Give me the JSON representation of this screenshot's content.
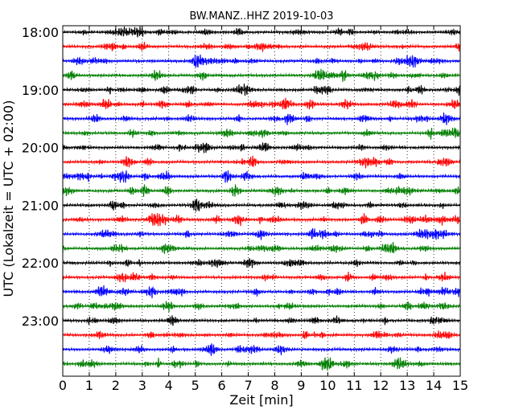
{
  "chart_data": {
    "type": "line",
    "title": "BW.MANZ..HHZ 2019-10-03",
    "xlabel": "Zeit  [min]",
    "ylabel": "UTC (Lokalzeit = UTC + 02:00)",
    "xlim": [
      0,
      15
    ],
    "x_ticks": [
      0,
      1,
      2,
      3,
      4,
      5,
      6,
      7,
      8,
      9,
      10,
      11,
      12,
      13,
      14,
      15
    ],
    "x_tick_labels": [
      "0",
      "1",
      "2",
      "3",
      "4",
      "5",
      "6",
      "7",
      "8",
      "9",
      "10",
      "11",
      "12",
      "13",
      "14",
      "15"
    ],
    "y_ticks": [
      "18:00",
      "19:00",
      "20:00",
      "21:00",
      "22:00",
      "23:00"
    ],
    "trace_start_times": [
      "18:00",
      "18:15",
      "18:30",
      "18:45",
      "19:00",
      "19:15",
      "19:30",
      "19:45",
      "20:00",
      "20:15",
      "20:30",
      "20:45",
      "21:00",
      "21:15",
      "21:30",
      "21:45",
      "22:00",
      "22:15",
      "22:30",
      "22:45",
      "23:00",
      "23:15",
      "23:30",
      "23:45"
    ],
    "trace_color_cycle": [
      "#000000",
      "#ff0000",
      "#0000ff",
      "#007f00"
    ],
    "vertical_grid": "dotted",
    "grid_color": "#000000"
  }
}
